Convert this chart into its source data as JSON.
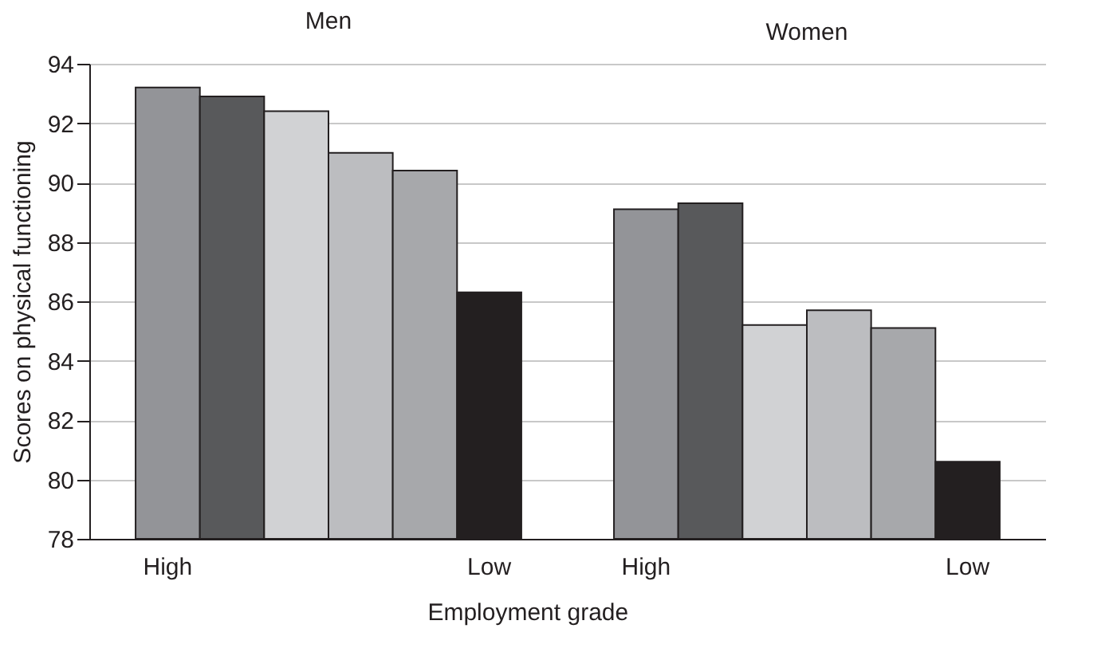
{
  "chart_data": [
    {
      "type": "bar",
      "title": "Men",
      "ylabel": "Scores on physical functioning",
      "xlabel": "Employment grade",
      "categories": [
        "High",
        null,
        null,
        null,
        null,
        "Low"
      ],
      "values": [
        93.2,
        92.9,
        92.4,
        91.0,
        90.4,
        86.3
      ],
      "colors": [
        "#939498",
        "#58595b",
        "#d1d2d4",
        "#bcbdc0",
        "#a7a8ab",
        "#231f20"
      ],
      "ylim": [
        78,
        94
      ],
      "yticks": [
        78,
        80,
        82,
        84,
        86,
        88,
        90,
        92,
        94
      ],
      "grid": "y"
    },
    {
      "type": "bar",
      "title": "Women",
      "categories": [
        "High",
        null,
        null,
        null,
        null,
        "Low"
      ],
      "values": [
        89.1,
        89.3,
        85.2,
        85.7,
        85.1,
        80.6
      ],
      "colors": [
        "#939498",
        "#58595b",
        "#d1d2d4",
        "#bcbdc0",
        "#a7a8ab",
        "#231f20"
      ],
      "ylim": [
        78,
        94
      ],
      "yticks": [
        78,
        80,
        82,
        84,
        86,
        88,
        90,
        92,
        94
      ],
      "grid": "y",
      "tick_labels": "x"
    }
  ]
}
